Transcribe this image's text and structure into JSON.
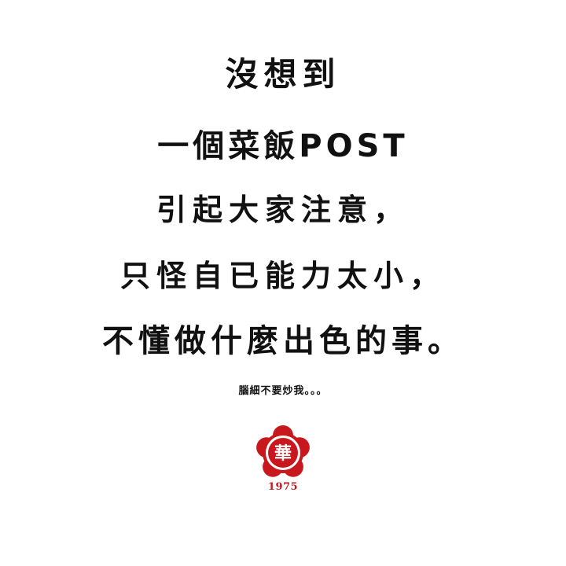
{
  "message": {
    "line1": "沒想到",
    "line2": "一個菜飯POST",
    "line3": "引起大家注意，",
    "line4": "只怪自已能力太小，",
    "line5": "不懂做什麼出色的事。",
    "note": "腦細不要炒我。。。"
  },
  "brand": {
    "logo_icon": "plum-blossom-seal-icon",
    "logo_text": "華",
    "year": "1975",
    "color": "#c8181e"
  }
}
